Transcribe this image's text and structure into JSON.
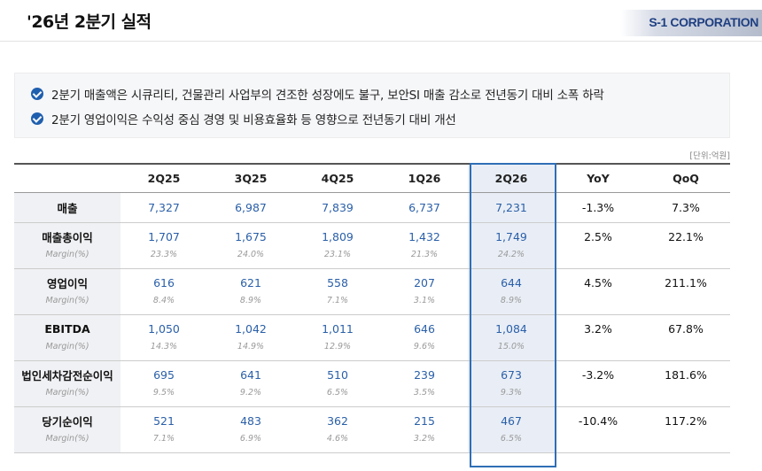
{
  "header": {
    "title": "'26년 2분기 실적",
    "logo_text": "S-1 CORPORATION"
  },
  "summary": {
    "items": [
      "2분기 매출액은 시큐리티, 건물관리 사업부의 견조한 성장에도 불구, 보안SI 매출 감소로 전년동기 대비 소폭 하락",
      "2분기 영업이익은 수익성 중심 경영 및 비용효율화 등 영향으로 전년동기 대비 개선"
    ]
  },
  "unit": "[단위:억원]",
  "table": {
    "columns": [
      "2Q25",
      "3Q25",
      "4Q25",
      "1Q26",
      "2Q26",
      "YoY",
      "QoQ"
    ],
    "margin_label": "Margin(%)",
    "rows": [
      {
        "label": "매출",
        "values": [
          "7,327",
          "6,987",
          "7,839",
          "6,737",
          "7,231"
        ],
        "yoy": "-1.3%",
        "qoq": "7.3%"
      },
      {
        "label": "매출총이익",
        "values": [
          "1,707",
          "1,675",
          "1,809",
          "1,432",
          "1,749"
        ],
        "margin": [
          "23.3%",
          "24.0%",
          "23.1%",
          "21.3%",
          "24.2%"
        ],
        "yoy": "2.5%",
        "qoq": "22.1%"
      },
      {
        "label": "영업이익",
        "values": [
          "616",
          "621",
          "558",
          "207",
          "644"
        ],
        "margin": [
          "8.4%",
          "8.9%",
          "7.1%",
          "3.1%",
          "8.9%"
        ],
        "yoy": "4.5%",
        "qoq": "211.1%"
      },
      {
        "label": "EBITDA",
        "values": [
          "1,050",
          "1,042",
          "1,011",
          "646",
          "1,084"
        ],
        "margin": [
          "14.3%",
          "14.9%",
          "12.9%",
          "9.6%",
          "15.0%"
        ],
        "yoy": "3.2%",
        "qoq": "67.8%"
      },
      {
        "label": "법인세차감전순이익",
        "values": [
          "695",
          "641",
          "510",
          "239",
          "673"
        ],
        "margin": [
          "9.5%",
          "9.2%",
          "6.5%",
          "3.5%",
          "9.3%"
        ],
        "yoy": "-3.2%",
        "qoq": "181.6%"
      },
      {
        "label": "당기순이익",
        "values": [
          "521",
          "483",
          "362",
          "215",
          "467"
        ],
        "margin": [
          "7.1%",
          "6.9%",
          "4.6%",
          "3.2%",
          "6.5%"
        ],
        "yoy": "-10.4%",
        "qoq": "117.2%"
      }
    ]
  }
}
